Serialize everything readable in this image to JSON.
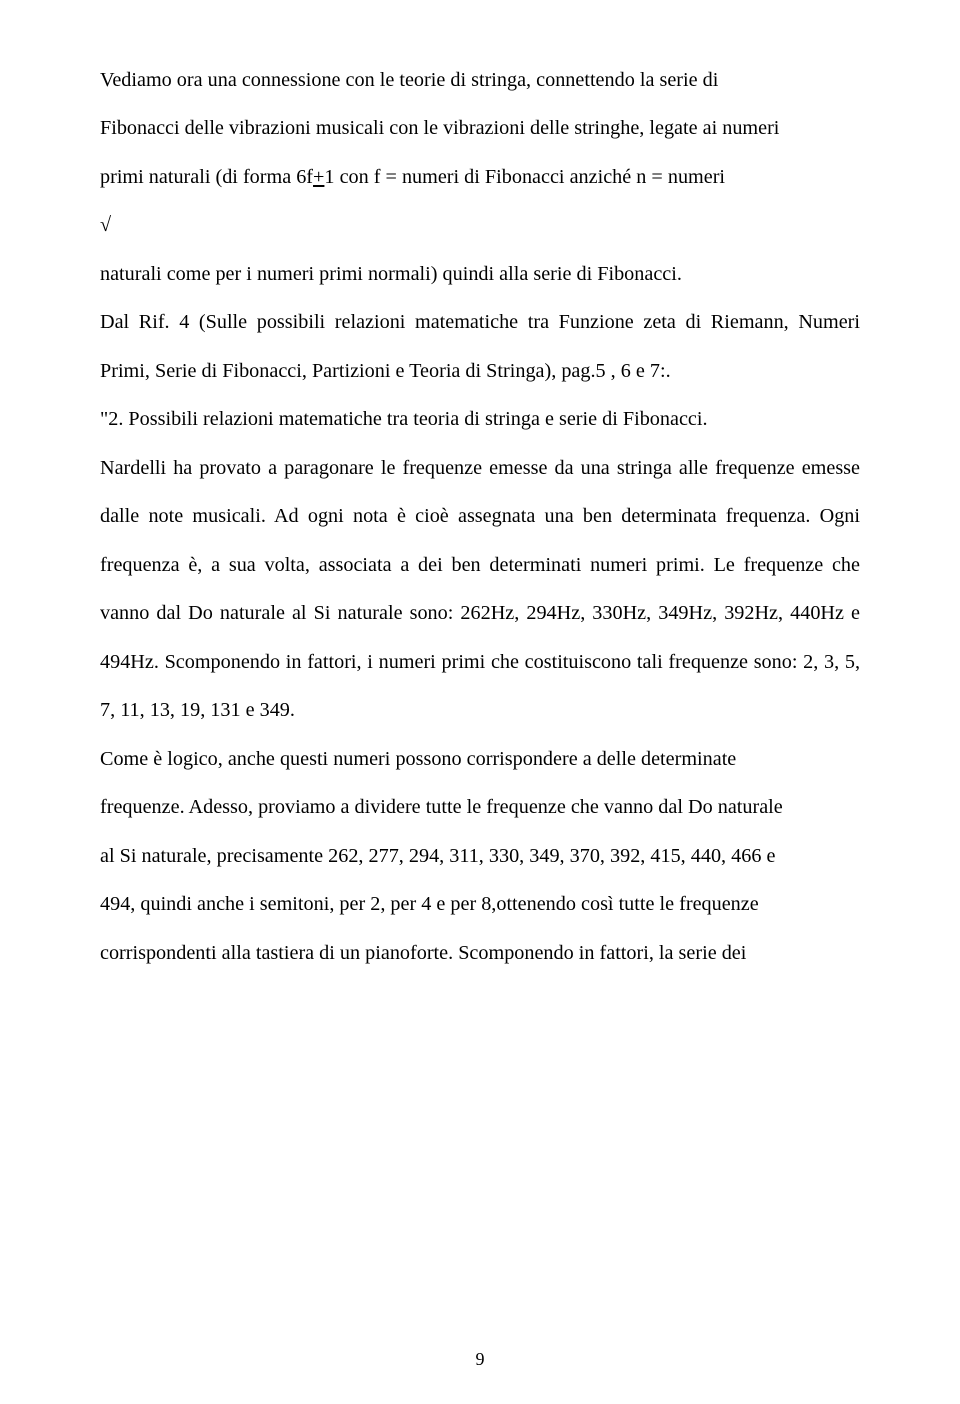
{
  "text": {
    "p1a": "Vediamo ora  una connessione con le teorie di stringa, connettendo la serie di",
    "p1b": "Fibonacci  delle vibrazioni musicali con le vibrazioni delle stringhe, legate ai numeri",
    "p1c_pre": "primi naturali  (di forma 6f",
    "p1c_pm": "+",
    "p1c_post": "1 con f = numeri di Fibonacci anziché n = numeri",
    "sqrt": "√",
    "p1d": "naturali come  per i numeri primi normali) quindi alla serie di Fibonacci.",
    "p2": " Dal Rif. 4  (Sulle possibili relazioni matematiche tra Funzione zeta di Riemann, Numeri Primi, Serie di Fibonacci, Partizioni e Teoria di Stringa), pag.5 , 6 e 7:.",
    "p3": "\"2. Possibili relazioni matematiche tra teoria di stringa e serie di Fibonacci.",
    "p4": "Nardelli ha provato a paragonare le frequenze emesse da una stringa alle frequenze emesse dalle note musicali. Ad ogni nota è cioè assegnata una ben determinata frequenza. Ogni frequenza è, a sua volta, associata a dei ben determinati numeri primi. Le frequenze che vanno dal Do naturale al Si naturale sono: 262Hz, 294Hz, 330Hz, 349Hz, 392Hz, 440Hz e 494Hz. Scomponendo in fattori, i numeri primi che costituiscono tali frequenze sono: 2, 3, 5, 7, 11, 13, 19, 131 e 349.",
    "p5": "Come è logico, anche questi numeri possono corrispondere a delle determinate",
    "p6": "frequenze. Adesso, proviamo a dividere tutte le frequenze che vanno dal Do naturale",
    "p7": "al Si naturale, precisamente 262, 277, 294, 311, 330, 349, 370, 392, 415, 440, 466 e",
    "p8": "494, quindi anche i semitoni, per 2, per 4 e per 8,ottenendo così tutte le frequenze",
    "p9": "corrispondenti alla tastiera di un pianoforte. Scomponendo in fattori, la serie dei"
  },
  "pageNumber": "9",
  "style": {
    "backgroundColor": "#ffffff",
    "textColor": "#000000",
    "fontFamily": "Times New Roman",
    "fontSizePx": 20.2,
    "lineHeight": 2.4,
    "pageWidthPx": 960,
    "pageHeightPx": 1404
  }
}
